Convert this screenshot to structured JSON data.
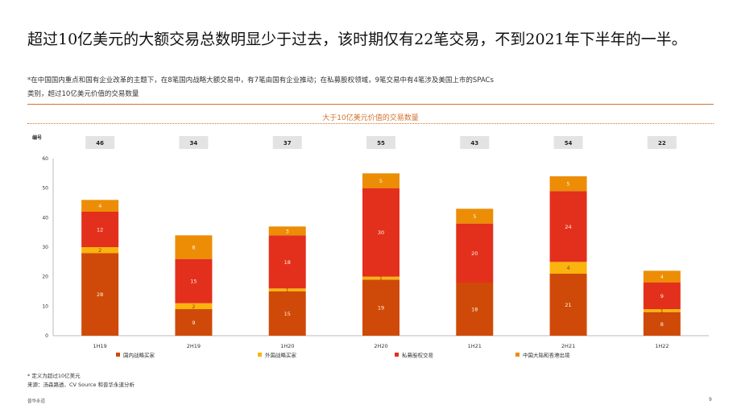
{
  "headline": "超过10亿美元的大额交易总数明显少于过去，该时期仅有22笔交易，不到2021年下半年的一半。",
  "note_line1": "*在中国国内重点和国有企业改革的主题下，在8笔国内战略大额交易中，有7笔由国有企业推动；在私募股权领域，9笔交易中有4笔涉及美国上市的SPACs",
  "note_line2": "类别，超过10亿美元价值的交易数量",
  "footnote_line1": "* 定义为超过10亿美元",
  "footnote_line2": "来源：汤森路透、CV Source 和普华永道分析",
  "brand": "普华永道",
  "page_number": "9",
  "colors": {
    "accent": "#d4722e",
    "domestic": "#cf4a08",
    "foreign": "#fbb40d",
    "pe": "#e3301c",
    "outbound": "#ec8d05",
    "total_box": "#e3e3e3"
  },
  "chart_data": {
    "type": "bar",
    "stacked": true,
    "title": "大于10亿美元价值的交易数量",
    "ylabel": "编号",
    "xlabel": "",
    "ylim": [
      0,
      60
    ],
    "yticks": [
      0,
      10,
      20,
      30,
      40,
      50,
      60
    ],
    "categories": [
      "1H19",
      "2H19",
      "1H20",
      "2H20",
      "1H21",
      "2H21",
      "1H22"
    ],
    "totals": [
      46,
      34,
      37,
      55,
      43,
      54,
      22
    ],
    "series": [
      {
        "name": "国内战略买家",
        "values": [
          28,
          9,
          15,
          19,
          18,
          21,
          8
        ]
      },
      {
        "name": "外国战略买家",
        "values": [
          2,
          2,
          1,
          1,
          0,
          4,
          1
        ]
      },
      {
        "name": "私募股权交易",
        "values": [
          12,
          15,
          18,
          30,
          20,
          24,
          9
        ]
      },
      {
        "name": "中国大陆和香港出境",
        "values": [
          4,
          8,
          3,
          5,
          5,
          5,
          4
        ]
      }
    ],
    "legend_position": "bottom"
  }
}
